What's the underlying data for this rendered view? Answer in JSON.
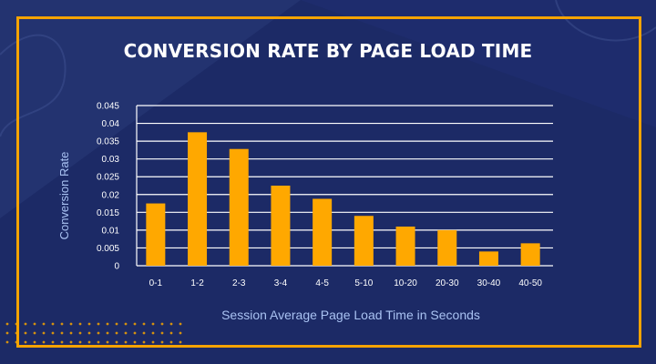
{
  "colors": {
    "background": "#1c2a66",
    "accent": "#f5a300",
    "grid": "#ffffff",
    "axis_label": "#a9c2f2"
  },
  "chart_data": {
    "type": "bar",
    "title": "CONVERSION RATE BY PAGE LOAD TIME",
    "xlabel": "Session Average Page Load Time in Seconds",
    "ylabel": "Conversion Rate",
    "categories": [
      "0-1",
      "1-2",
      "2-3",
      "3-4",
      "4-5",
      "5-10",
      "10-20",
      "20-30",
      "30-40",
      "40-50"
    ],
    "values": [
      0.0175,
      0.0375,
      0.0328,
      0.0225,
      0.0188,
      0.014,
      0.011,
      0.01,
      0.004,
      0.0063
    ],
    "ylim": [
      0,
      0.045
    ],
    "yticks": [
      "0",
      "0.005",
      "0.01",
      "0.015",
      "0.02",
      "0.025",
      "0.03",
      "0.035",
      "0.04",
      "0.045"
    ],
    "grid": true,
    "bar_color": "#ffa800"
  }
}
